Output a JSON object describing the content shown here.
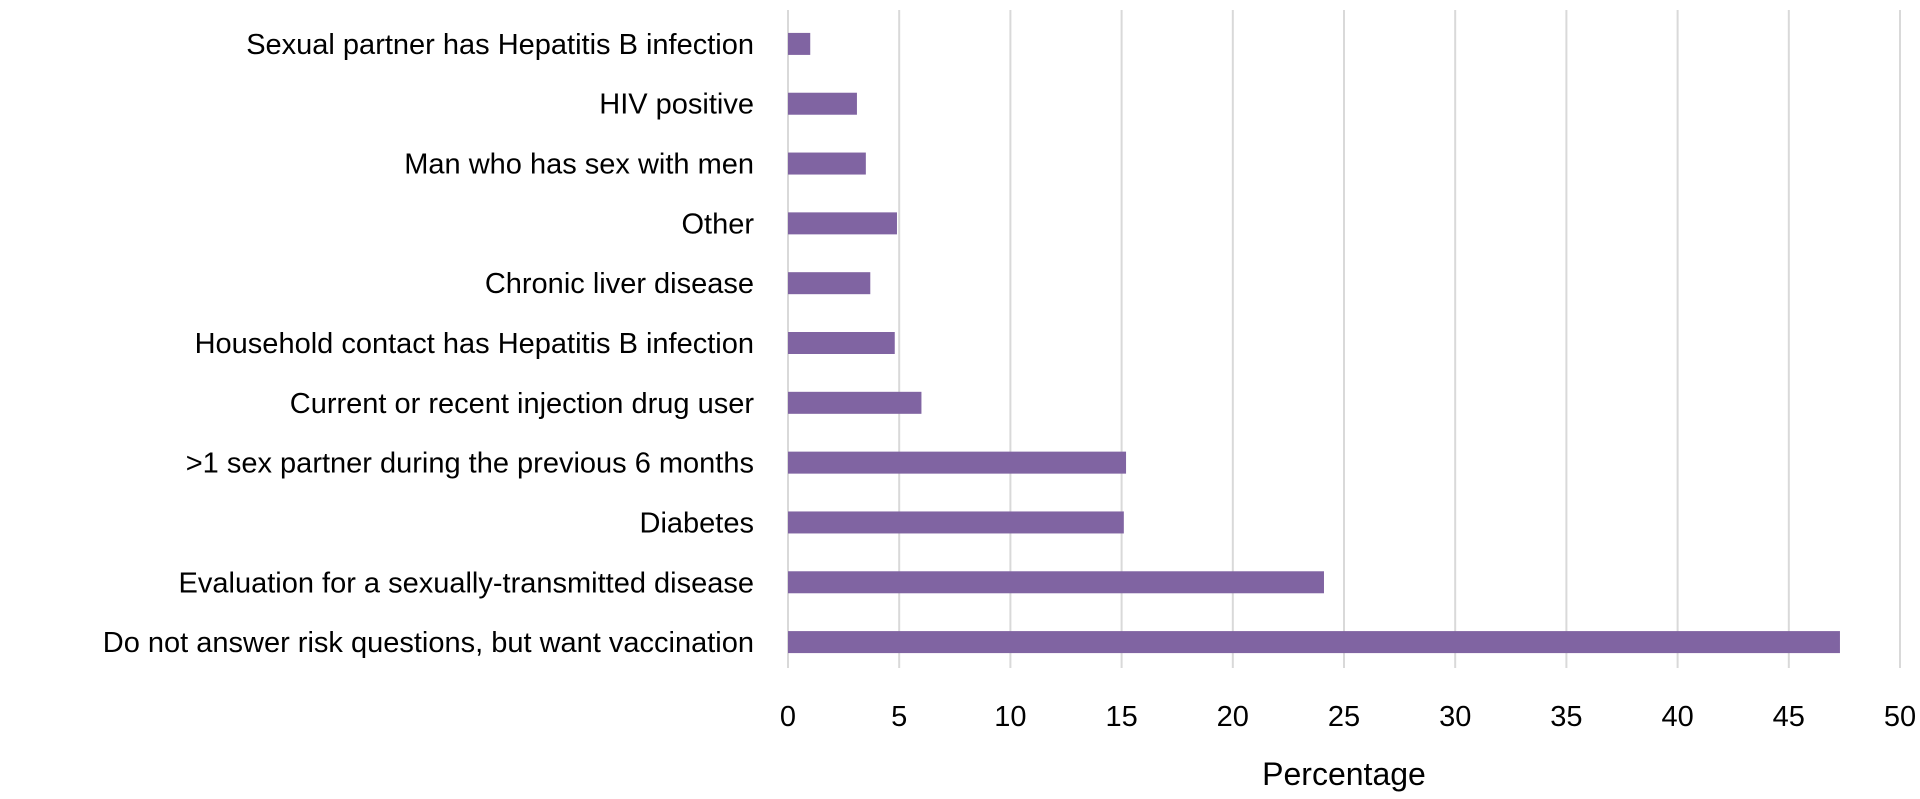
{
  "chart_data": {
    "type": "bar",
    "orientation": "horizontal",
    "title": "",
    "xlabel": "Percentage",
    "ylabel": "",
    "xlim": [
      0,
      50
    ],
    "xticks": [
      "0",
      "5",
      "10",
      "15",
      "20",
      "25",
      "30",
      "35",
      "40",
      "45",
      "50"
    ],
    "grid": true,
    "bar_color": "#8064A2",
    "categories": [
      "Sexual partner has Hepatitis B infection",
      "HIV positive",
      "Man who has sex with men",
      "Other",
      "Chronic liver disease",
      "Household contact has Hepatitis B infection",
      "Current or recent injection drug user",
      ">1 sex partner during the previous 6 months",
      "Diabetes",
      "Evaluation for a sexually-transmitted disease",
      "Do not answer risk questions, but want vaccination"
    ],
    "values": [
      1.0,
      3.1,
      3.5,
      4.9,
      3.7,
      4.8,
      6.0,
      15.2,
      15.1,
      24.1,
      47.3
    ]
  }
}
